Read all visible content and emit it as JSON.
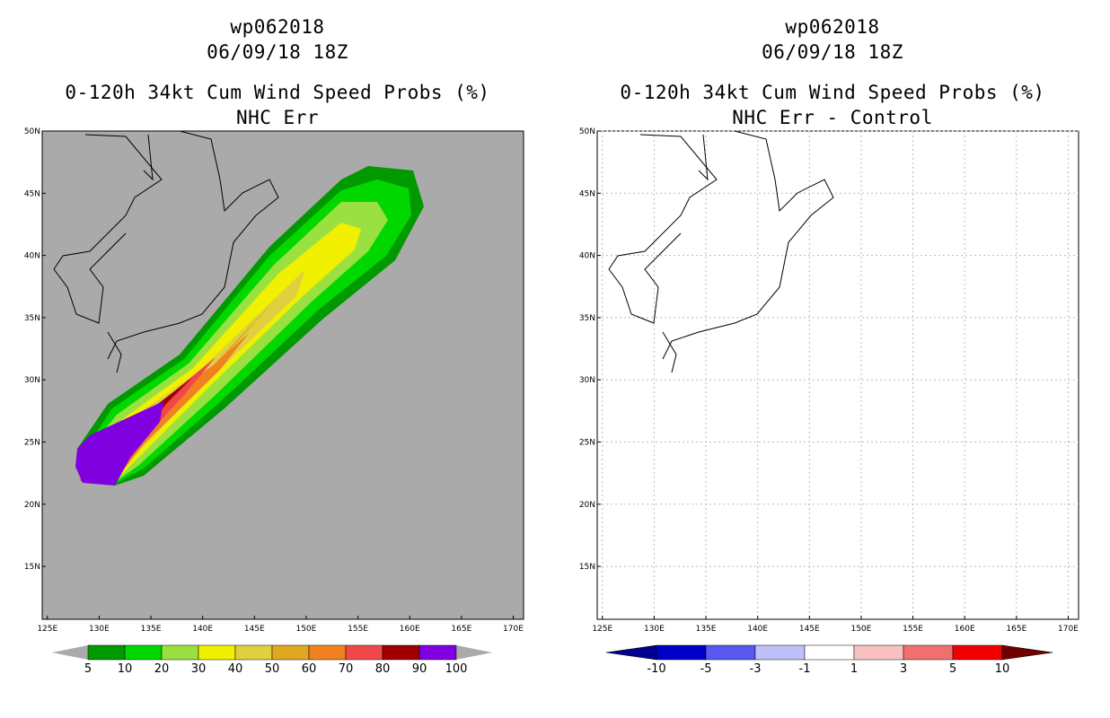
{
  "left": {
    "storm_id": "wp062018",
    "datetime": "06/09/18 18Z",
    "title": "0-120h 34kt Cum Wind Speed Probs (%)",
    "subtitle": "NHC Err",
    "colorbar": {
      "labels": [
        "5",
        "10",
        "20",
        "30",
        "40",
        "50",
        "60",
        "70",
        "80",
        "90",
        "100"
      ],
      "colors": [
        "#009900",
        "#00d800",
        "#99e040",
        "#f0f000",
        "#e0d040",
        "#e0a820",
        "#f08020",
        "#f04848",
        "#a00000",
        "#8000e0"
      ],
      "end_color": "#aaaaaa"
    }
  },
  "right": {
    "storm_id": "wp062018",
    "datetime": "06/09/18 18Z",
    "title": "0-120h 34kt Cum Wind Speed Probs (%)",
    "subtitle": "NHC Err - Control",
    "colorbar": {
      "labels": [
        "-10",
        "-5",
        "-3",
        "-1",
        "1",
        "3",
        "5",
        "10"
      ],
      "colors": [
        "#0000c8",
        "#5858f0",
        "#c0c0f8",
        "#ffffff",
        "#f8c0c0",
        "#f07070",
        "#f00000"
      ],
      "low_color": "#000090",
      "high_color": "#700000"
    }
  },
  "axes": {
    "lat_labels": [
      "50N",
      "45N",
      "40N",
      "35N",
      "30N",
      "25N",
      "20N",
      "15N"
    ],
    "lon_labels": [
      "125E",
      "130E",
      "135E",
      "140E",
      "145E",
      "150E",
      "155E",
      "160E",
      "165E",
      "170E"
    ]
  },
  "colors": {
    "land_bg": "#aaaaaa",
    "grid": "#bbbbbb"
  }
}
